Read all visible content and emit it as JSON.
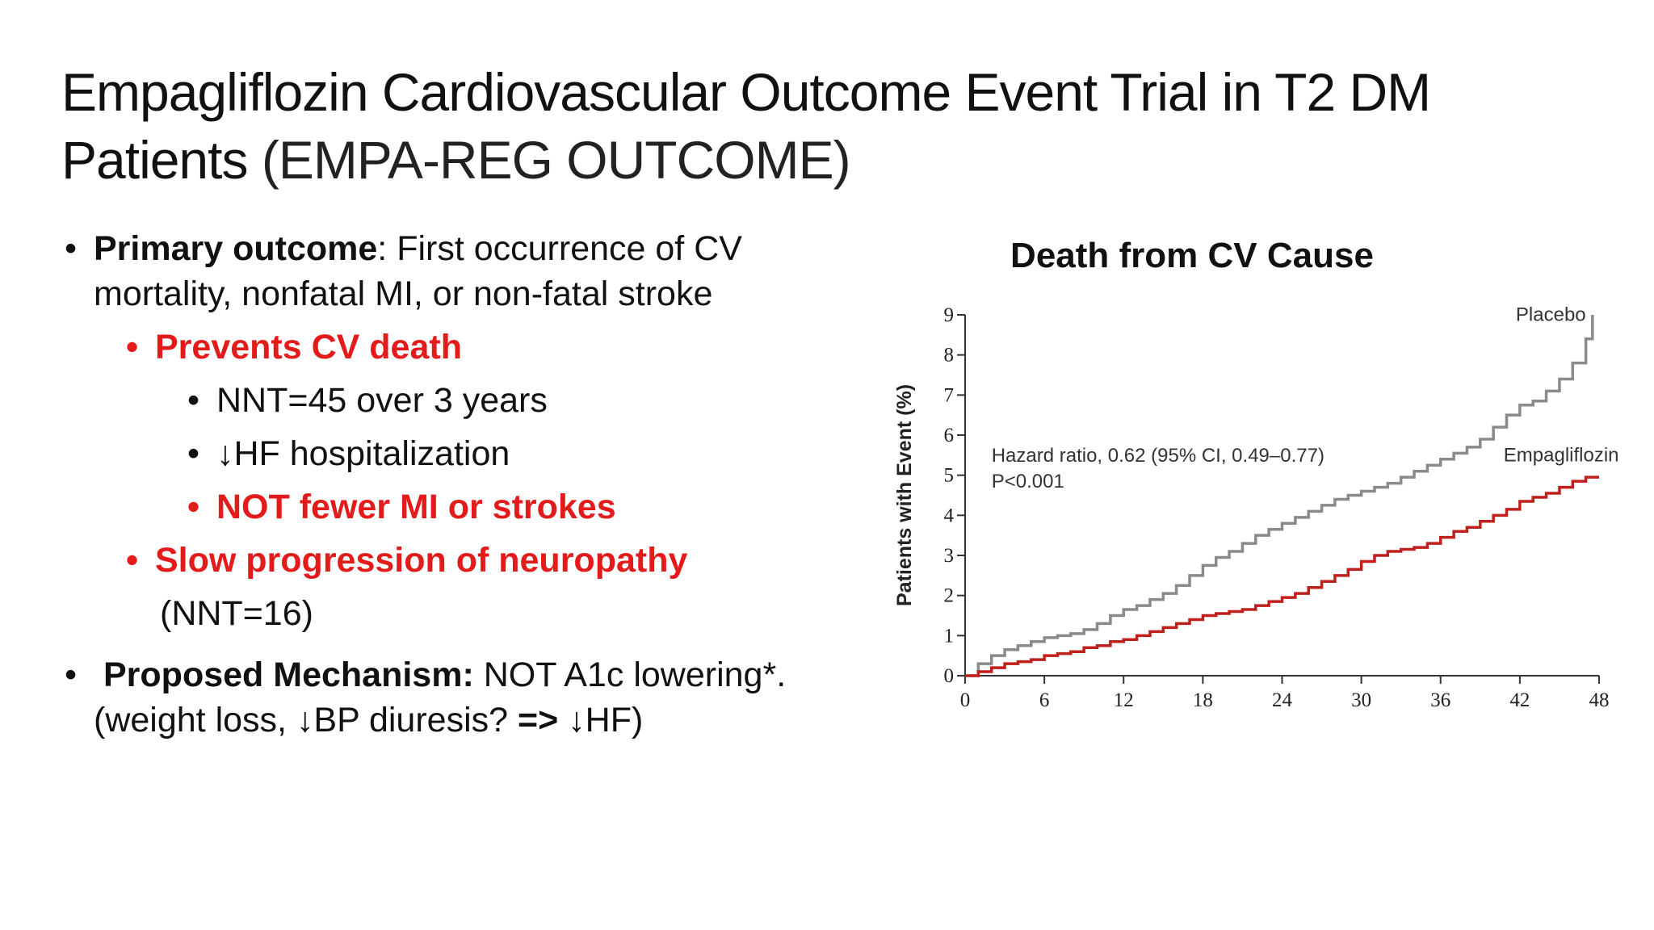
{
  "slide": {
    "title_main": "Empagliflozin Cardiovascular Outcome Event Trial in T2 DM Patients",
    "title_paren": "(EMPA-REG OUTCOME)"
  },
  "bullets": {
    "primary_label": "Primary outcome",
    "primary_text_line1": ": First occurrence of CV",
    "primary_text_line2": "mortality, nonfatal MI, or non-fatal stroke",
    "prevents": "Prevents CV death",
    "nnt45": "NNT=45 over 3 years",
    "hf": "↓HF hospitalization",
    "not_fewer": "NOT fewer MI or strokes",
    "slow": "Slow progression of neuropathy",
    "nnt16": "(NNT=16)",
    "mech_label": "Proposed Mechanism:",
    "mech_text": " NOT A1c lowering*.",
    "mech_line2_a": "(weight loss, ↓BP diuresis? ",
    "mech_line2_arrow": "=>",
    "mech_line2_b": " ↓HF)",
    "bullet_char": "•"
  },
  "chart_data": {
    "type": "line",
    "title": "Death from CV Cause",
    "xlabel": "",
    "ylabel": "Patients with Event (%)",
    "xlim": [
      0,
      48
    ],
    "ylim": [
      0,
      9
    ],
    "xticks": [
      0,
      6,
      12,
      18,
      24,
      30,
      36,
      42,
      48
    ],
    "yticks": [
      0,
      1,
      2,
      3,
      4,
      5,
      6,
      7,
      8,
      9
    ],
    "annotation_line1": "Hazard ratio, 0.62 (95% CI, 0.49–0.77)",
    "annotation_line2": "P<0.001",
    "series": [
      {
        "name": "Placebo",
        "color": "#8a8a8a",
        "x": [
          0,
          1,
          2,
          3,
          4,
          5,
          6,
          7,
          8,
          9,
          10,
          11,
          12,
          13,
          14,
          15,
          16,
          17,
          18,
          19,
          20,
          21,
          22,
          23,
          24,
          25,
          26,
          27,
          28,
          29,
          30,
          31,
          32,
          33,
          34,
          35,
          36,
          37,
          38,
          39,
          40,
          41,
          42,
          43,
          44,
          45,
          46,
          47,
          47.5
        ],
        "y": [
          0,
          0.3,
          0.5,
          0.65,
          0.75,
          0.85,
          0.95,
          1.0,
          1.05,
          1.15,
          1.3,
          1.5,
          1.65,
          1.75,
          1.9,
          2.05,
          2.25,
          2.5,
          2.75,
          2.95,
          3.1,
          3.3,
          3.5,
          3.65,
          3.8,
          3.95,
          4.1,
          4.25,
          4.4,
          4.5,
          4.6,
          4.7,
          4.8,
          4.95,
          5.1,
          5.25,
          5.4,
          5.55,
          5.7,
          5.9,
          6.2,
          6.5,
          6.75,
          6.85,
          7.1,
          7.4,
          7.8,
          8.4,
          9.0
        ]
      },
      {
        "name": "Empagliflozin",
        "color": "#c0201b",
        "x": [
          0,
          1,
          2,
          3,
          4,
          5,
          6,
          7,
          8,
          9,
          10,
          11,
          12,
          13,
          14,
          15,
          16,
          17,
          18,
          19,
          20,
          21,
          22,
          23,
          24,
          25,
          26,
          27,
          28,
          29,
          30,
          31,
          32,
          33,
          34,
          35,
          36,
          37,
          38,
          39,
          40,
          41,
          42,
          43,
          44,
          45,
          46,
          47,
          48
        ],
        "y": [
          0,
          0.1,
          0.2,
          0.3,
          0.35,
          0.4,
          0.5,
          0.55,
          0.6,
          0.7,
          0.75,
          0.85,
          0.9,
          1.0,
          1.1,
          1.2,
          1.3,
          1.4,
          1.5,
          1.55,
          1.6,
          1.65,
          1.75,
          1.85,
          1.95,
          2.05,
          2.2,
          2.35,
          2.5,
          2.65,
          2.85,
          3.0,
          3.1,
          3.15,
          3.2,
          3.3,
          3.45,
          3.6,
          3.7,
          3.85,
          4.0,
          4.15,
          4.35,
          4.45,
          4.55,
          4.7,
          4.85,
          4.95,
          4.95
        ]
      }
    ]
  }
}
